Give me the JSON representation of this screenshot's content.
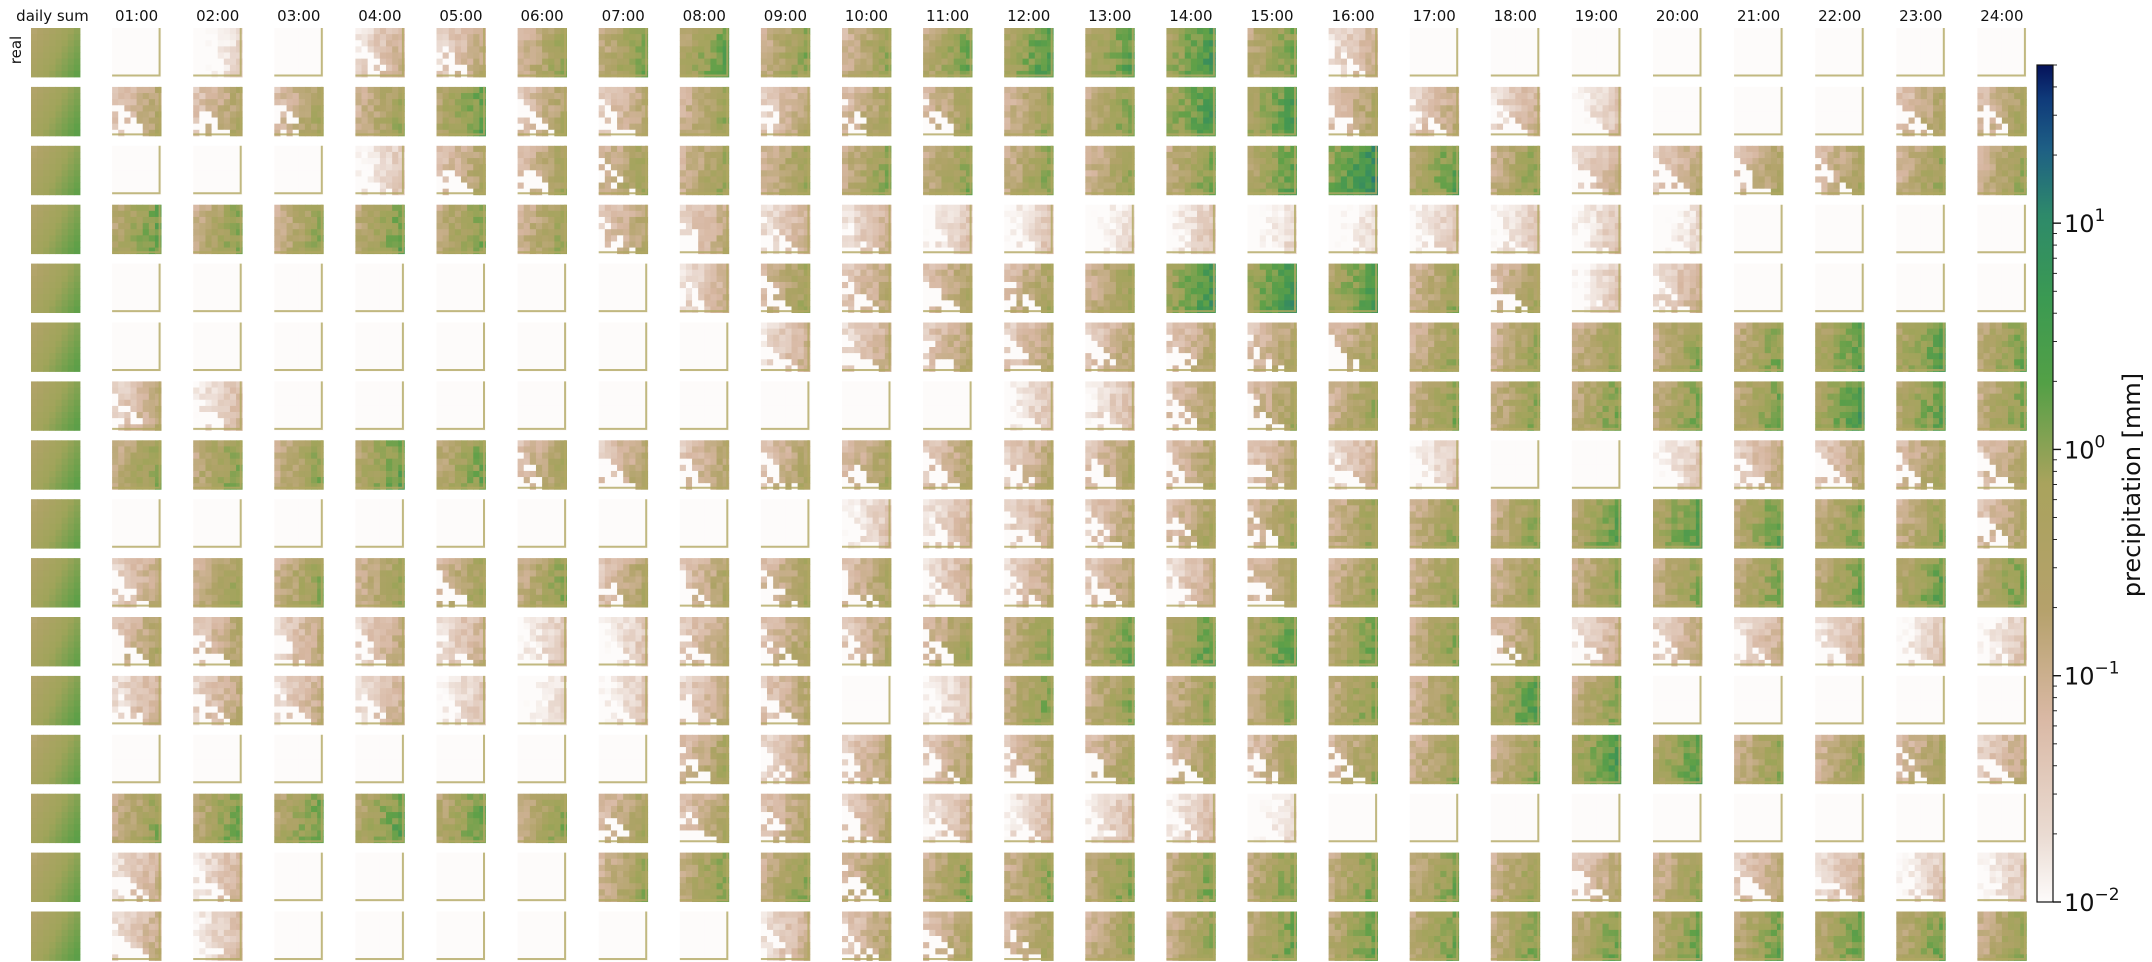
{
  "chart_data": {
    "type": "heatmap",
    "description_columns": [
      "daily sum",
      "01:00",
      "02:00",
      "03:00",
      "04:00",
      "05:00",
      "06:00",
      "07:00",
      "08:00",
      "09:00",
      "10:00",
      "11:00",
      "12:00",
      "13:00",
      "14:00",
      "15:00",
      "16:00",
      "17:00",
      "18:00",
      "19:00",
      "20:00",
      "21:00",
      "22:00",
      "23:00",
      "24:00"
    ],
    "row_labels": [
      "real"
    ],
    "row_count": 16,
    "colorbar": {
      "label": "precipitation [mm]",
      "scale": "log",
      "range": [
        0.01,
        50
      ],
      "ticks": [
        0.01,
        0.1,
        1,
        10
      ],
      "tick_labels": [
        {
          "base": "10",
          "exp": "−2"
        },
        {
          "base": "10",
          "exp": "−1"
        },
        {
          "base": "10",
          "exp": "0"
        },
        {
          "base": "10",
          "exp": "1"
        }
      ],
      "colors": [
        "#fdfbfa",
        "#d9b8a4",
        "#a9a35d",
        "#53a046",
        "#2e8a6a",
        "#1e5f85",
        "#0a1f6e"
      ]
    },
    "cell_levels": [
      [
        0.8,
        0.0,
        0.01,
        0.0,
        0.05,
        0.08,
        0.3,
        0.5,
        0.8,
        0.4,
        0.3,
        0.6,
        1.2,
        0.9,
        1.5,
        0.6,
        0.05,
        0.0,
        0.0,
        0.0,
        0.0,
        0.0,
        0.0,
        0.0,
        0.0
      ],
      [
        0.9,
        0.12,
        0.15,
        0.2,
        0.3,
        0.8,
        0.15,
        0.1,
        0.3,
        0.1,
        0.2,
        0.25,
        0.3,
        0.5,
        1.5,
        1.2,
        0.15,
        0.08,
        0.05,
        0.02,
        0.0,
        0.0,
        0.0,
        0.15,
        0.2
      ],
      [
        0.8,
        0.0,
        0.0,
        0.0,
        0.02,
        0.15,
        0.2,
        0.25,
        0.3,
        0.3,
        0.4,
        0.4,
        0.4,
        0.3,
        0.5,
        0.8,
        2.5,
        0.8,
        0.4,
        0.05,
        0.1,
        0.15,
        0.2,
        0.3,
        0.3
      ],
      [
        0.9,
        0.7,
        0.4,
        0.35,
        0.6,
        0.5,
        0.3,
        0.12,
        0.08,
        0.05,
        0.05,
        0.02,
        0.02,
        0.01,
        0.02,
        0.01,
        0.01,
        0.02,
        0.02,
        0.02,
        0.01,
        0.0,
        0.0,
        0.0,
        0.0
      ],
      [
        0.8,
        0.0,
        0.0,
        0.0,
        0.0,
        0.0,
        0.0,
        0.0,
        0.05,
        0.25,
        0.1,
        0.15,
        0.2,
        0.3,
        1.5,
        2.0,
        1.2,
        0.3,
        0.2,
        0.02,
        0.05,
        0.0,
        0.0,
        0.0,
        0.0
      ],
      [
        0.9,
        0.0,
        0.0,
        0.0,
        0.0,
        0.0,
        0.0,
        0.0,
        0.0,
        0.05,
        0.06,
        0.12,
        0.1,
        0.1,
        0.12,
        0.15,
        0.2,
        0.3,
        0.3,
        0.35,
        0.4,
        0.5,
        0.9,
        1.0,
        0.6
      ],
      [
        0.9,
        0.08,
        0.03,
        0.0,
        0.0,
        0.0,
        0.0,
        0.0,
        0.0,
        0.0,
        0.0,
        0.0,
        0.02,
        0.03,
        0.15,
        0.2,
        0.3,
        0.4,
        0.4,
        0.5,
        0.5,
        0.6,
        1.2,
        0.8,
        0.5
      ],
      [
        0.9,
        0.4,
        0.5,
        0.4,
        0.8,
        0.6,
        0.2,
        0.12,
        0.12,
        0.15,
        0.2,
        0.12,
        0.1,
        0.15,
        0.15,
        0.12,
        0.05,
        0.02,
        0.0,
        0.0,
        0.02,
        0.08,
        0.1,
        0.2,
        0.15
      ],
      [
        0.8,
        0.0,
        0.0,
        0.0,
        0.0,
        0.0,
        0.0,
        0.0,
        0.0,
        0.0,
        0.02,
        0.04,
        0.06,
        0.1,
        0.2,
        0.25,
        0.3,
        0.35,
        0.4,
        0.8,
        1.0,
        0.7,
        0.5,
        0.35,
        0.15
      ],
      [
        0.9,
        0.08,
        0.3,
        0.35,
        0.3,
        0.25,
        0.4,
        0.15,
        0.15,
        0.2,
        0.15,
        0.05,
        0.08,
        0.12,
        0.06,
        0.2,
        0.3,
        0.35,
        0.3,
        0.4,
        0.4,
        0.5,
        0.6,
        0.8,
        0.6
      ],
      [
        0.8,
        0.15,
        0.12,
        0.08,
        0.08,
        0.05,
        0.02,
        0.02,
        0.1,
        0.15,
        0.12,
        0.25,
        0.4,
        0.6,
        0.8,
        1.0,
        0.6,
        0.4,
        0.2,
        0.05,
        0.08,
        0.05,
        0.04,
        0.02,
        0.02
      ],
      [
        0.9,
        0.05,
        0.08,
        0.06,
        0.05,
        0.02,
        0.01,
        0.02,
        0.08,
        0.12,
        0.0,
        0.02,
        0.5,
        0.4,
        0.35,
        0.4,
        0.5,
        0.3,
        1.0,
        0.4,
        0.0,
        0.0,
        0.0,
        0.0,
        0.0
      ],
      [
        0.8,
        0.0,
        0.0,
        0.0,
        0.0,
        0.0,
        0.0,
        0.0,
        0.2,
        0.08,
        0.1,
        0.12,
        0.15,
        0.2,
        0.2,
        0.2,
        0.25,
        0.3,
        0.35,
        1.2,
        0.9,
        0.35,
        0.3,
        0.2,
        0.08
      ],
      [
        0.9,
        0.35,
        0.6,
        0.7,
        0.8,
        0.7,
        0.4,
        0.2,
        0.15,
        0.15,
        0.1,
        0.04,
        0.03,
        0.03,
        0.03,
        0.01,
        0.0,
        0.0,
        0.0,
        0.0,
        0.0,
        0.0,
        0.0,
        0.0,
        0.0
      ],
      [
        0.8,
        0.05,
        0.04,
        0.0,
        0.0,
        0.0,
        0.0,
        0.3,
        0.5,
        0.4,
        0.25,
        0.4,
        0.4,
        0.5,
        0.5,
        0.5,
        0.5,
        0.5,
        0.35,
        0.1,
        0.3,
        0.1,
        0.05,
        0.02,
        0.02
      ],
      [
        0.9,
        0.06,
        0.03,
        0.0,
        0.0,
        0.0,
        0.0,
        0.0,
        0.0,
        0.05,
        0.12,
        0.15,
        0.2,
        0.3,
        0.35,
        0.6,
        0.7,
        0.6,
        0.5,
        0.6,
        0.6,
        0.6,
        0.7,
        0.6,
        0.35
      ]
    ]
  }
}
